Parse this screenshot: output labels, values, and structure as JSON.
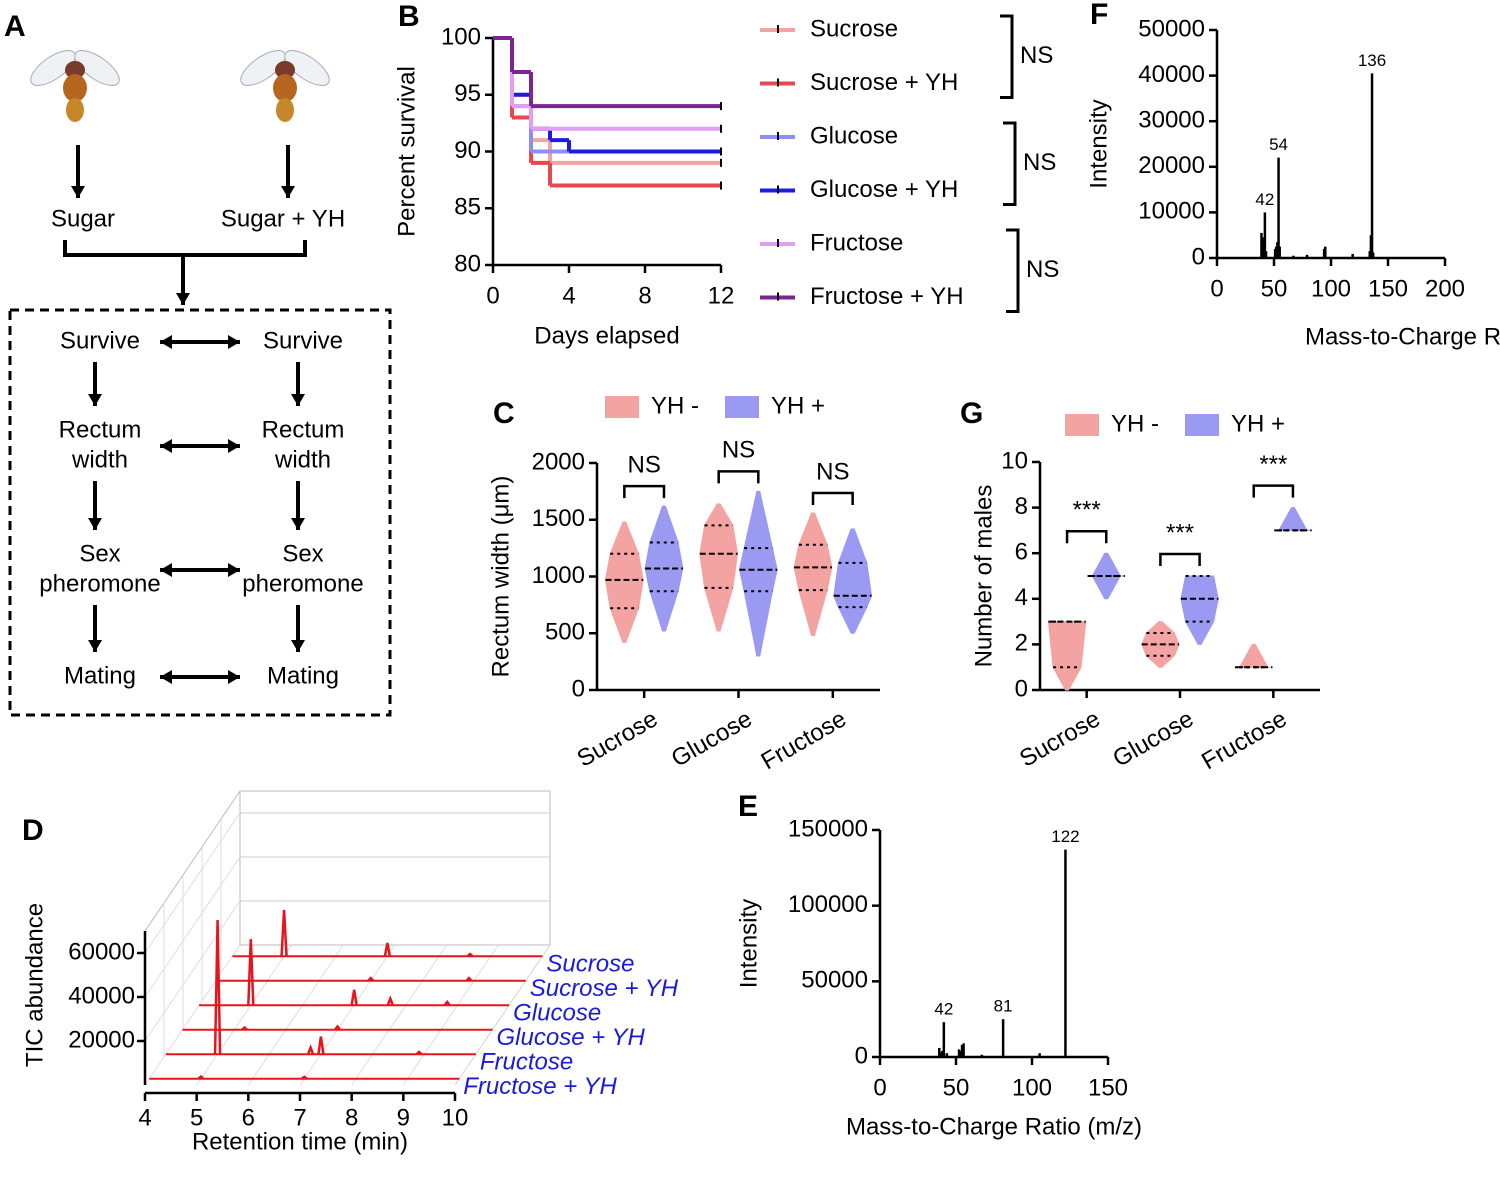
{
  "diagram": {
    "panel": "A",
    "left": "Sugar",
    "right": "Sugar + YH",
    "rows": [
      {
        "left": [
          "Survive"
        ],
        "right": [
          "Survive"
        ]
      },
      {
        "left": [
          "Rectum",
          "width"
        ],
        "right": [
          "Rectum",
          "width"
        ]
      },
      {
        "left": [
          "Sex",
          "pheromone"
        ],
        "right": [
          "Sex",
          "pheromone"
        ]
      },
      {
        "left": [
          "Mating"
        ],
        "right": [
          "Mating"
        ]
      }
    ]
  },
  "chart_data": [
    {
      "panel": "B",
      "type": "step",
      "x_label": "Days elapsed",
      "y_label": "Percent survival",
      "x": [
        0,
        1,
        2,
        3,
        4,
        12
      ],
      "xlim": [
        0,
        12
      ],
      "xticks": [
        0,
        4,
        8,
        12
      ],
      "ylim": [
        80,
        100
      ],
      "yticks": [
        80,
        85,
        90,
        95,
        100
      ],
      "series": [
        {
          "name": "Sucrose",
          "color": "#f4a3a3",
          "values": [
            100,
            95,
            91,
            89,
            89,
            89
          ]
        },
        {
          "name": "Sucrose + YH",
          "color": "#e8474c",
          "values": [
            100,
            93,
            89,
            87,
            87,
            87
          ]
        },
        {
          "name": "Glucose",
          "color": "#8c8ef0",
          "values": [
            100,
            94,
            90,
            90,
            90,
            90
          ]
        },
        {
          "name": "Glucose + YH",
          "color": "#1c1ce0",
          "values": [
            100,
            95,
            92,
            91,
            90,
            90
          ]
        },
        {
          "name": "Fructose",
          "color": "#e29ef2",
          "values": [
            100,
            94,
            92,
            92,
            92,
            92
          ]
        },
        {
          "name": "Fructose + YH",
          "color": "#7a2590",
          "values": [
            100,
            97,
            94,
            94,
            94,
            94
          ]
        }
      ],
      "annotations": [
        "NS",
        "NS",
        "NS"
      ]
    },
    {
      "panel": "F",
      "type": "spectrum",
      "x_label": "Mass-to-Charge Ratio (m/z)",
      "y_label": "Intensity",
      "xlim": [
        0,
        200
      ],
      "xticks": [
        0,
        50,
        100,
        150,
        200
      ],
      "ylim": [
        0,
        50000
      ],
      "yticks": [
        0,
        10000,
        20000,
        30000,
        40000,
        50000
      ],
      "color": "#000000",
      "x": [
        39,
        40,
        41,
        42,
        43,
        51,
        52,
        53,
        54,
        55,
        67,
        79,
        94,
        95,
        119,
        134,
        135,
        136,
        137
      ],
      "values": [
        5500,
        3000,
        4500,
        10000,
        1500,
        2000,
        2500,
        3500,
        22000,
        2500,
        500,
        700,
        2000,
        2500,
        900,
        1500,
        5000,
        40500,
        1200
      ],
      "peak_labels": [
        42,
        54,
        136
      ]
    },
    {
      "panel": "C",
      "type": "violin",
      "y_label": "Rectum width (μm)",
      "categories": [
        "Sucrose",
        "Glucose",
        "Fructose"
      ],
      "ylim": [
        0,
        2000
      ],
      "yticks": [
        0,
        500,
        1000,
        1500,
        2000
      ],
      "series": [
        {
          "name": "YH -",
          "color": "#f4a3a3",
          "values": [
            {
              "min": 420,
              "q1": 720,
              "median": 970,
              "q3": 1200,
              "max": 1480
            },
            {
              "min": 520,
              "q1": 900,
              "median": 1200,
              "q3": 1450,
              "max": 1640
            },
            {
              "min": 480,
              "q1": 880,
              "median": 1080,
              "q3": 1280,
              "max": 1560
            }
          ]
        },
        {
          "name": "YH +",
          "color": "#9a9af2",
          "values": [
            {
              "min": 520,
              "q1": 870,
              "median": 1070,
              "q3": 1300,
              "max": 1620
            },
            {
              "min": 300,
              "q1": 870,
              "median": 1060,
              "q3": 1250,
              "max": 1750
            },
            {
              "min": 500,
              "q1": 730,
              "median": 830,
              "q3": 1120,
              "max": 1420
            }
          ]
        }
      ],
      "annotations": [
        "NS",
        "NS",
        "NS"
      ]
    },
    {
      "panel": "G",
      "type": "violin",
      "y_label": "Number of males",
      "categories": [
        "Sucrose",
        "Glucose",
        "Fructose"
      ],
      "ylim": [
        0,
        10
      ],
      "yticks": [
        0,
        2,
        4,
        6,
        8,
        10
      ],
      "series": [
        {
          "name": "YH -",
          "color": "#f4a3a3",
          "values": [
            {
              "min": 0,
              "q1": 1,
              "median": 3,
              "q3": 3,
              "max": 3
            },
            {
              "min": 1,
              "q1": 1.5,
              "median": 2,
              "q3": 2.5,
              "max": 3
            },
            {
              "min": 1,
              "q1": 1,
              "median": 1,
              "q3": 1,
              "max": 2
            }
          ]
        },
        {
          "name": "YH +",
          "color": "#9a9af2",
          "values": [
            {
              "min": 4,
              "q1": 5,
              "median": 5,
              "q3": 5,
              "max": 6
            },
            {
              "min": 2,
              "q1": 3,
              "median": 4,
              "q3": 5,
              "max": 5
            },
            {
              "min": 7,
              "q1": 7,
              "median": 7,
              "q3": 7,
              "max": 8
            }
          ]
        }
      ],
      "annotations": [
        "***",
        "***",
        "***"
      ]
    },
    {
      "panel": "D",
      "type": "chromatogram3d",
      "x_label": "Retention time (min)",
      "y_label": "TIC abundance",
      "xlim": [
        4,
        10
      ],
      "xticks": [
        4,
        5,
        6,
        7,
        8,
        9,
        10
      ],
      "ylim": [
        0,
        70000
      ],
      "yticks": [
        20000,
        40000,
        60000
      ],
      "color": "#e8141c",
      "series": [
        {
          "name": "Sucrose",
          "x": [
            5.0,
            7.0,
            8.6
          ],
          "values": [
            21000,
            6000,
            1000
          ]
        },
        {
          "name": "Sucrose + YH",
          "x": [
            7.0,
            8.9
          ],
          "values": [
            1200,
            1200
          ]
        },
        {
          "name": "Glucose",
          "x": [
            5.0,
            7.0,
            7.7,
            8.8
          ],
          "values": [
            30000,
            7000,
            3000,
            1500
          ]
        },
        {
          "name": "Glucose + YH",
          "x": [
            5.2,
            7.0
          ],
          "values": [
            1000,
            1500
          ]
        },
        {
          "name": "Fructose",
          "x": [
            5.0,
            6.8,
            7.0,
            8.9
          ],
          "values": [
            61000,
            3000,
            8000,
            1000
          ]
        },
        {
          "name": "Fructose + YH",
          "x": [
            5.0,
            7.0
          ],
          "values": [
            1000,
            800
          ]
        }
      ]
    },
    {
      "panel": "E",
      "type": "spectrum",
      "x_label": "Mass-to-Charge Ratio (m/z)",
      "y_label": "Intensity",
      "xlim": [
        0,
        150
      ],
      "xticks": [
        0,
        50,
        100,
        150
      ],
      "ylim": [
        0,
        150000
      ],
      "yticks": [
        0,
        50000,
        100000,
        150000
      ],
      "color": "#000000",
      "x": [
        39,
        40,
        41,
        42,
        44,
        52,
        53,
        54,
        55,
        67,
        81,
        105,
        122
      ],
      "values": [
        6000,
        3000,
        4000,
        23000,
        2500,
        5000,
        4000,
        8000,
        9000,
        1500,
        25000,
        2500,
        137000
      ],
      "peak_labels": [
        42,
        81,
        122
      ]
    }
  ]
}
